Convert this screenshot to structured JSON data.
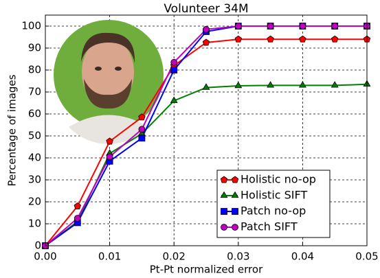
{
  "chart_data": {
    "type": "line",
    "title": "Volunteer 34M",
    "x_label": "Pt-Pt normalized error",
    "y_label": "Percentage of images",
    "x": [
      0,
      0.005,
      0.01,
      0.015,
      0.02,
      0.025,
      0.03,
      0.035,
      0.04,
      0.045,
      0.05
    ],
    "series": [
      {
        "name": "Holistic no-op",
        "color": "#ff0000",
        "marker": "pentagon",
        "values": [
          0,
          18,
          47.5,
          58.5,
          82,
          92.5,
          94,
          94,
          94,
          94,
          94
        ]
      },
      {
        "name": "Holistic SIFT",
        "color": "#008000",
        "marker": "triangle",
        "values": [
          0,
          11,
          42,
          51,
          66,
          72,
          72.8,
          73,
          73,
          73,
          73.5
        ]
      },
      {
        "name": "Patch no-op",
        "color": "#0000ff",
        "marker": "square",
        "values": [
          0,
          10.5,
          38.5,
          49,
          80,
          97.5,
          100,
          100,
          100,
          100,
          100
        ]
      },
      {
        "name": "Patch SIFT",
        "color": "#bf00bf",
        "marker": "circle",
        "values": [
          0,
          12.5,
          40.5,
          53,
          83.5,
          98.5,
          100,
          100,
          100,
          100,
          100
        ]
      }
    ],
    "xlim": [
      0,
      0.05
    ],
    "ylim": [
      0,
      105
    ],
    "xticks": [
      {
        "value": 0,
        "label": "0.00"
      },
      {
        "value": 0.01,
        "label": "0.01"
      },
      {
        "value": 0.02,
        "label": "0.02"
      },
      {
        "value": 0.03,
        "label": "0.03"
      },
      {
        "value": 0.04,
        "label": "0.04"
      },
      {
        "value": 0.05,
        "label": "0.05"
      }
    ],
    "yticks": [
      0,
      10,
      20,
      30,
      40,
      50,
      60,
      70,
      80,
      90,
      100
    ],
    "grid": true,
    "legend": "lower right"
  }
}
